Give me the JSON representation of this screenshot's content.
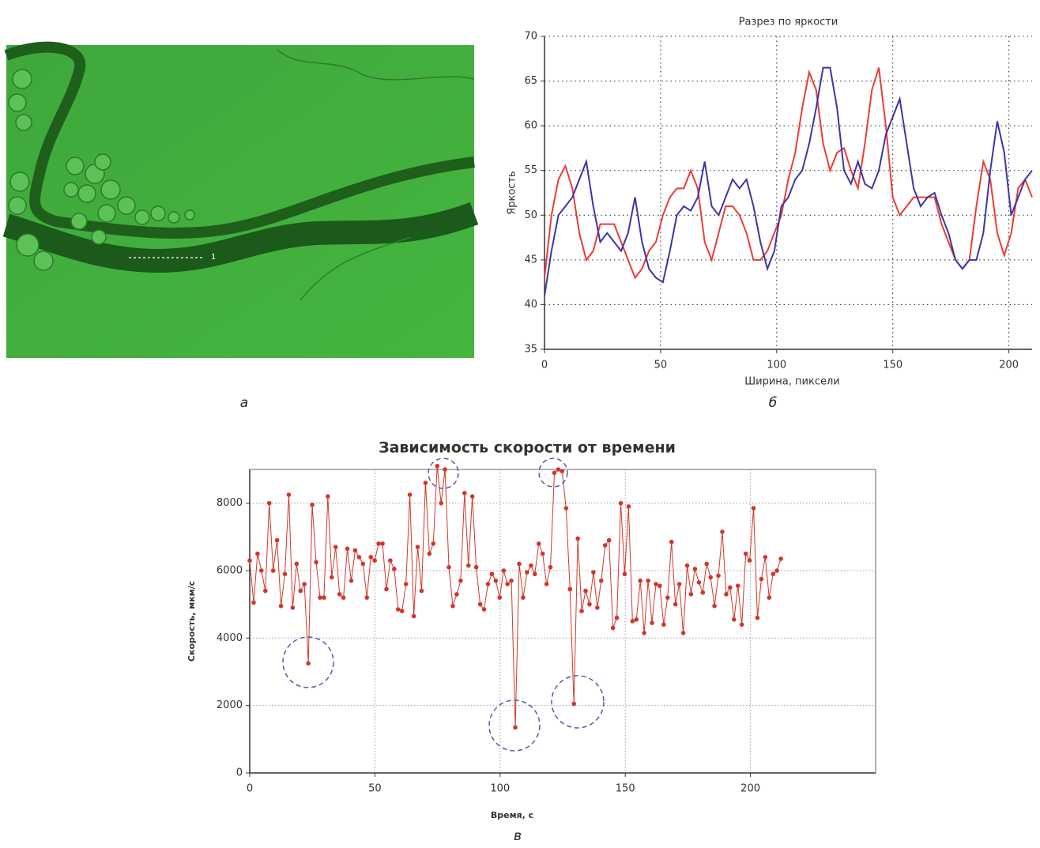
{
  "photo": {
    "marker_label": "1"
  },
  "captions": [
    "а",
    "б",
    "в"
  ],
  "chart_data": [
    {
      "type": "line",
      "title": "Разрез по яркости",
      "xlabel": "Ширина, пиксели",
      "ylabel": "Яркость",
      "x": [
        0,
        3,
        6,
        9,
        12,
        15,
        18,
        21,
        24,
        27,
        30,
        33,
        36,
        39,
        42,
        45,
        48,
        51,
        54,
        57,
        60,
        63,
        66,
        69,
        72,
        75,
        78,
        81,
        84,
        87,
        90,
        93,
        96,
        99,
        102,
        105,
        108,
        111,
        114,
        117,
        120,
        123,
        126,
        129,
        132,
        135,
        138,
        141,
        144,
        147,
        150,
        153,
        156,
        159,
        162,
        165,
        168,
        171,
        174,
        177,
        180,
        183,
        186,
        189,
        192,
        195,
        198,
        201,
        204,
        207,
        210
      ],
      "series": [
        {
          "color": "#ee3b34",
          "values": [
            43,
            50,
            54,
            55.5,
            53,
            48,
            45,
            46,
            49,
            49,
            49,
            47,
            45,
            43,
            44,
            46,
            47,
            50,
            52,
            53,
            53,
            55,
            53,
            47,
            45,
            48,
            51,
            51,
            50,
            48,
            45,
            45,
            46,
            48,
            50,
            54,
            57,
            62,
            66,
            64,
            58,
            55,
            57,
            57.5,
            55,
            53,
            58,
            64,
            66.5,
            60,
            52,
            50,
            51,
            52,
            52,
            52,
            52,
            49,
            47,
            45,
            44,
            45,
            51,
            56,
            54,
            48,
            45.5,
            48,
            53,
            54,
            52
          ]
        },
        {
          "color": "#3d35a6",
          "values": [
            41,
            46,
            50,
            51,
            52,
            54,
            56,
            51,
            47,
            48,
            47,
            46,
            48,
            52,
            47,
            44,
            43,
            42.5,
            46,
            50,
            51,
            50.5,
            52,
            56,
            51,
            50,
            52,
            54,
            53,
            54,
            51,
            47,
            44,
            46,
            51,
            52,
            54,
            55,
            58,
            62,
            66.5,
            66.5,
            62,
            55,
            53.5,
            56,
            53.5,
            53,
            55,
            59,
            61,
            63,
            58,
            53,
            51,
            52,
            52.5,
            50,
            48,
            45,
            44,
            45,
            45,
            48,
            55,
            60.5,
            57,
            50,
            52,
            54,
            55
          ]
        }
      ],
      "xlim": [
        0,
        210
      ],
      "ylim": [
        35,
        70
      ],
      "xticks": [
        0,
        50,
        100,
        150,
        200
      ],
      "yticks": [
        35,
        40,
        45,
        50,
        55,
        60,
        65,
        70
      ],
      "grid": true
    },
    {
      "type": "line",
      "markers": true,
      "title": "Зависимость скорости от времени",
      "xlabel": "Время, с",
      "ylabel": "Скорость, мкм/с",
      "x": [
        0,
        1.56,
        3.12,
        4.68,
        6.24,
        7.8,
        9.36,
        10.92,
        12.48,
        14.04,
        15.6,
        17.16,
        18.72,
        20.28,
        21.84,
        23.4,
        24.96,
        26.52,
        28.08,
        29.64,
        31.2,
        32.76,
        34.32,
        35.88,
        37.44,
        39,
        40.56,
        42.12,
        43.68,
        45.24,
        46.8,
        48.36,
        49.92,
        51.48,
        53.04,
        54.6,
        56.16,
        57.72,
        59.28,
        60.84,
        62.4,
        63.96,
        65.52,
        67.08,
        68.64,
        70.2,
        71.76,
        73.32,
        74.88,
        76.44,
        78,
        79.56,
        81.12,
        82.68,
        84.24,
        85.8,
        87.36,
        88.92,
        90.48,
        92.04,
        93.6,
        95.16,
        96.72,
        98.28,
        99.84,
        101.4,
        102.96,
        104.52,
        106.08,
        107.64,
        109.2,
        110.76,
        112.32,
        113.88,
        115.44,
        117,
        118.56,
        120.12,
        121.68,
        123.24,
        124.8,
        126.36,
        127.92,
        129.48,
        131.04,
        132.6,
        134.16,
        135.72,
        137.28,
        138.84,
        140.4,
        141.96,
        143.52,
        145.08,
        146.64,
        148.2,
        149.76,
        151.32,
        152.88,
        154.44,
        156,
        157.56,
        159.12,
        160.68,
        162.24,
        163.8,
        165.36,
        166.92,
        168.48,
        170.04,
        171.6,
        173.16,
        174.72,
        176.28,
        177.84,
        179.4,
        180.96,
        182.52,
        184.08,
        185.64,
        187.2,
        188.76,
        190.32,
        191.88,
        193.44,
        195,
        196.56,
        198.12,
        199.68,
        201.24,
        202.8,
        204.36,
        205.92,
        207.48,
        209.04,
        210.6,
        212.16
      ],
      "series": [
        {
          "color": "#d2362a",
          "values": [
            6300,
            5050,
            6500,
            6000,
            5400,
            8000,
            6000,
            6900,
            4950,
            5900,
            8250,
            4900,
            6200,
            5400,
            5600,
            3250,
            7950,
            6250,
            5200,
            5200,
            8200,
            5800,
            6700,
            5300,
            5200,
            6650,
            5700,
            6600,
            6400,
            6200,
            5200,
            6400,
            6300,
            6800,
            6800,
            5450,
            6300,
            6050,
            4850,
            4800,
            5600,
            8250,
            4650,
            6700,
            5400,
            8600,
            6500,
            6800,
            9100,
            8000,
            9000,
            6100,
            4950,
            5300,
            5700,
            8300,
            6150,
            8200,
            6100,
            5000,
            4850,
            5600,
            5900,
            5700,
            5200,
            6000,
            5600,
            5700,
            1350,
            6200,
            5200,
            5950,
            6150,
            5900,
            6800,
            6500,
            5600,
            6100,
            8900,
            9000,
            8950,
            7850,
            5450,
            2050,
            6950,
            4800,
            5400,
            5000,
            5950,
            4900,
            5700,
            6750,
            6900,
            4300,
            4600,
            8000,
            5900,
            7900,
            4500,
            4550,
            5700,
            4150,
            5700,
            4450,
            5600,
            5550,
            4400,
            5200,
            6850,
            5000,
            5600,
            4150,
            6150,
            5300,
            6050,
            5650,
            5350,
            6200,
            5800,
            4950,
            5850,
            7150,
            5300,
            5500,
            4550,
            5550,
            4400,
            6500,
            6300,
            7850,
            4600,
            5750,
            6400,
            5200,
            5900,
            6000,
            6350
          ]
        }
      ],
      "xlim": [
        0,
        250
      ],
      "ylim": [
        0,
        9000
      ],
      "xticks": [
        0,
        50,
        100,
        150,
        200
      ],
      "yticks": [
        0,
        2000,
        4000,
        6000,
        8000
      ],
      "grid": true
    }
  ]
}
